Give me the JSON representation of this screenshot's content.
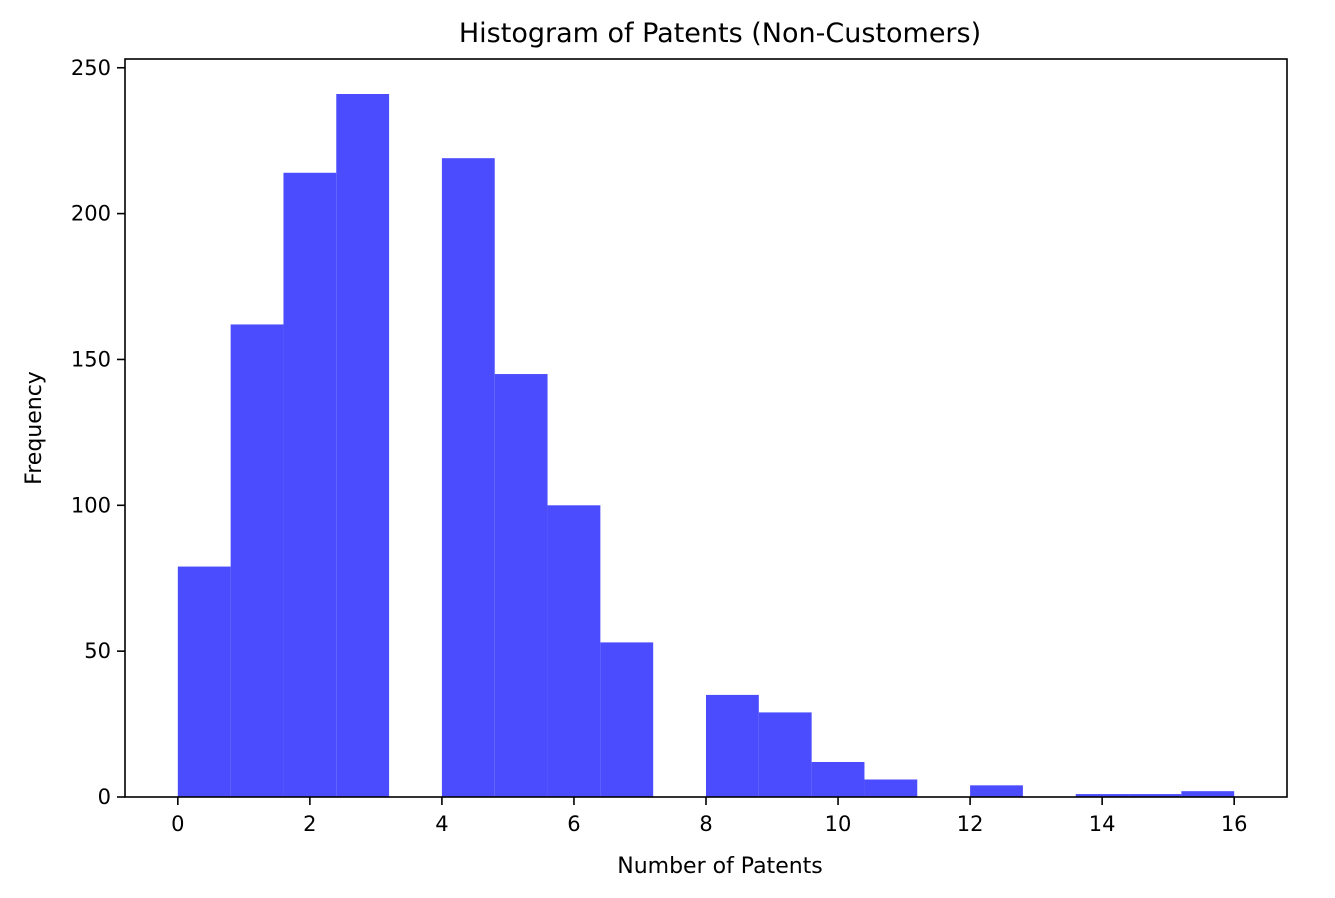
{
  "chart_data": {
    "type": "bar",
    "title": "Histogram of Patents (Non-Customers)",
    "xlabel": "Number of Patents",
    "ylabel": "Frequency",
    "bar_color": "#4c4cff",
    "xlim": [
      -0.8,
      16.8
    ],
    "ylim": [
      0,
      253
    ],
    "x_ticks": [
      0,
      2,
      4,
      6,
      8,
      10,
      12,
      14,
      16
    ],
    "y_ticks": [
      0,
      50,
      100,
      150,
      200,
      250
    ],
    "bins": [
      {
        "x0": 0.0,
        "x1": 0.8,
        "value": 79
      },
      {
        "x0": 0.8,
        "x1": 1.6,
        "value": 162
      },
      {
        "x0": 1.6,
        "x1": 2.4,
        "value": 214
      },
      {
        "x0": 2.4,
        "x1": 3.2,
        "value": 241
      },
      {
        "x0": 3.2,
        "x1": 4.0,
        "value": 0
      },
      {
        "x0": 4.0,
        "x1": 4.8,
        "value": 219
      },
      {
        "x0": 4.8,
        "x1": 5.6,
        "value": 145
      },
      {
        "x0": 5.6,
        "x1": 6.4,
        "value": 100
      },
      {
        "x0": 6.4,
        "x1": 7.2,
        "value": 53
      },
      {
        "x0": 7.2,
        "x1": 8.0,
        "value": 0
      },
      {
        "x0": 8.0,
        "x1": 8.8,
        "value": 35
      },
      {
        "x0": 8.8,
        "x1": 9.6,
        "value": 29
      },
      {
        "x0": 9.6,
        "x1": 10.4,
        "value": 12
      },
      {
        "x0": 10.4,
        "x1": 11.2,
        "value": 6
      },
      {
        "x0": 11.2,
        "x1": 12.0,
        "value": 0
      },
      {
        "x0": 12.0,
        "x1": 12.8,
        "value": 4
      },
      {
        "x0": 12.8,
        "x1": 13.6,
        "value": 0
      },
      {
        "x0": 13.6,
        "x1": 14.4,
        "value": 1
      },
      {
        "x0": 14.4,
        "x1": 15.2,
        "value": 1
      },
      {
        "x0": 15.2,
        "x1": 16.0,
        "value": 2
      }
    ]
  }
}
